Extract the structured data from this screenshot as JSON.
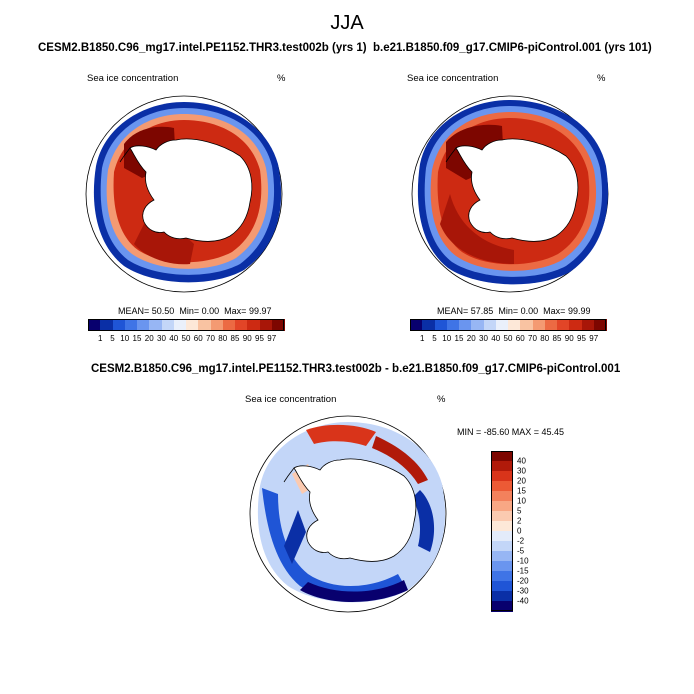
{
  "figure": {
    "title": "JJA"
  },
  "panels": [
    {
      "title": "CESM2.B1850.C96_mg17.intel.PE1152.THR3.test002b (yrs 1)",
      "left_label": "Sea ice concentration",
      "right_label": "%",
      "stats": {
        "mean_label": "MEAN=",
        "mean": "50.50",
        "min_label": "Min=",
        "min": "0.00",
        "max_label": "Max=",
        "max": "99.97"
      }
    },
    {
      "title": "b.e21.B1850.f09_g17.CMIP6-piControl.001 (yrs 101)",
      "left_label": "Sea ice concentration",
      "right_label": "%",
      "stats": {
        "mean_label": "MEAN=",
        "mean": "57.85",
        "min_label": "Min=",
        "min": "0.00",
        "max_label": "Max=",
        "max": "99.99"
      }
    },
    {
      "title": "CESM2.B1850.C96_mg17.intel.PE1152.THR3.test002b - b.e21.B1850.f09_g17.CMIP6-piControl.001",
      "left_label": "Sea ice concentration",
      "right_label": "%",
      "minmax": "MIN = -85.60 MAX =  45.45"
    }
  ],
  "colorbar_concentration": {
    "ticks": [
      "1",
      "5",
      "10",
      "15",
      "20",
      "30",
      "40",
      "50",
      "60",
      "70",
      "80",
      "85",
      "90",
      "95",
      "97"
    ],
    "colors": [
      "#08006e",
      "#0a2fa6",
      "#1f55d6",
      "#3f74e6",
      "#6a95ef",
      "#97b6f4",
      "#c3d6f8",
      "#eaf0fb",
      "#fde8d8",
      "#f9c3a2",
      "#f49a72",
      "#ec6a43",
      "#e24527",
      "#cd2a12",
      "#a81608",
      "#7d0600"
    ]
  },
  "colorbar_difference": {
    "ticks": [
      "40",
      "30",
      "20",
      "15",
      "10",
      "5",
      "2",
      "0",
      "-2",
      "-5",
      "-10",
      "-15",
      "-20",
      "-30",
      "-40"
    ],
    "colors": [
      "#7d0600",
      "#b11a0a",
      "#d9341a",
      "#ec5a35",
      "#f3815c",
      "#f8a784",
      "#fbcab0",
      "#fde8d8",
      "#e3ebfa",
      "#c3d6f8",
      "#97b6f4",
      "#6a95ef",
      "#3f74e6",
      "#1f55d6",
      "#0a2fa6",
      "#08006e"
    ]
  }
}
